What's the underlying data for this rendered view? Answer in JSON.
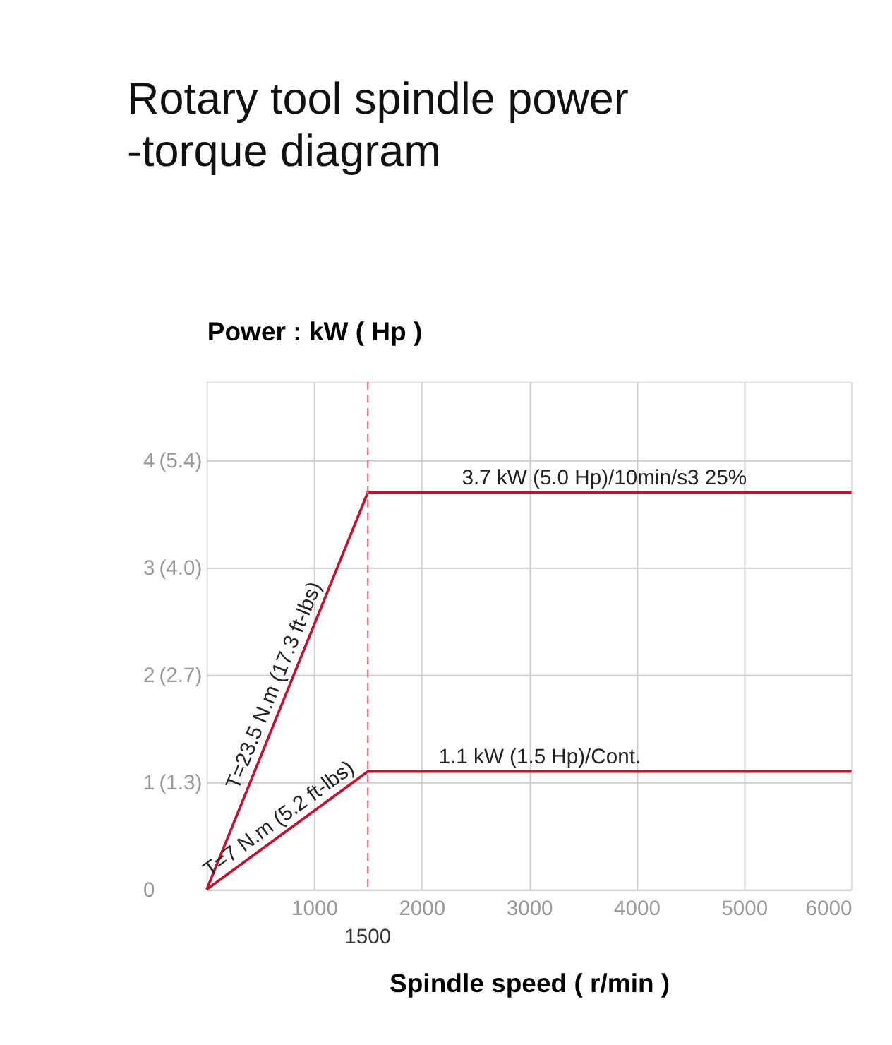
{
  "chart_data": {
    "type": "line",
    "title": "Rotary tool spindle power\n-torque diagram",
    "xlabel": "Spindle speed ( r/min )",
    "y2label": "Power : kW ( Hp )",
    "series": [
      {
        "x": [
          0,
          1500,
          6000
        ],
        "values": [
          0,
          3.7,
          3.7
        ],
        "color": "#c8102e"
      },
      {
        "x": [
          0,
          1500,
          6000
        ],
        "values": [
          0,
          1.1,
          1.1
        ],
        "color": "#c8102e"
      }
    ],
    "xlim": [
      0,
      6000
    ],
    "xticks": [
      1000,
      2000,
      3000,
      4000,
      5000,
      6000
    ],
    "ylim": [
      0,
      4.73
    ],
    "yticks": [
      0,
      1,
      2,
      3,
      4
    ],
    "y2lim": [
      0,
      6.343
    ],
    "y2ticks": [
      {
        "value": 1.341,
        "label": "(1.3)"
      },
      {
        "value": 2.682,
        "label": "(2.7)"
      },
      {
        "value": 4.023,
        "label": "(4.0)"
      },
      {
        "value": 5.364,
        "label": "(5.4)"
      }
    ],
    "grid": true,
    "marker": "none",
    "line_style": "solid",
    "ref_lines": [
      {
        "axis": "x",
        "value": 1500,
        "label": "1500",
        "color": "#e8707f",
        "line_style": "dashed"
      }
    ],
    "annotations": [
      {
        "text": "3.7 kW (5.0 Hp)/10min/s3 25%",
        "x": 3700,
        "y": 3.7
      },
      {
        "text": "1.1 kW (1.5 Hp)/Cont.",
        "x": 3100,
        "y": 1.1
      },
      {
        "text": "T=23.5 N.m (17.3 ft-lbs)",
        "x": 750,
        "y": 1.85
      },
      {
        "text": "T=7 N.m (5.2 ft-lbs)",
        "x": 750,
        "y": 0.55
      }
    ]
  }
}
